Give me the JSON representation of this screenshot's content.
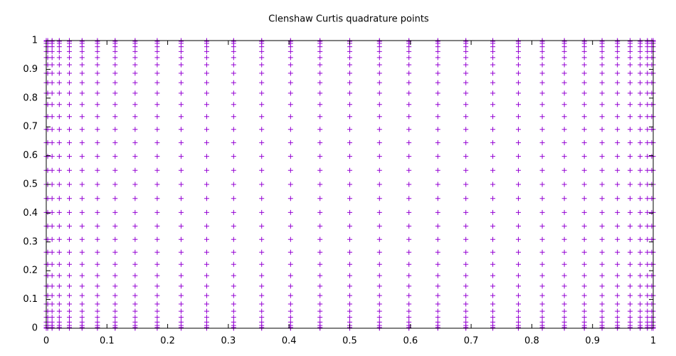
{
  "chart_data": {
    "type": "grid",
    "title": "Clenshaw Curtis quadrature points",
    "x": [
      0,
      0.0024,
      0.0096,
      0.0215,
      0.0381,
      0.059,
      0.0843,
      0.1135,
      0.1464,
      0.1828,
      0.2222,
      0.2643,
      0.3087,
      0.3549,
      0.4025,
      0.451,
      0.5,
      0.549,
      0.5975,
      0.6451,
      0.6913,
      0.7357,
      0.7778,
      0.8172,
      0.8536,
      0.8865,
      0.9157,
      0.941,
      0.9619,
      0.9785,
      0.9904,
      0.9976,
      1
    ],
    "y": [
      0,
      0.0024,
      0.0096,
      0.0215,
      0.0381,
      0.059,
      0.0843,
      0.1135,
      0.1464,
      0.1828,
      0.2222,
      0.2643,
      0.3087,
      0.3549,
      0.4025,
      0.451,
      0.5,
      0.549,
      0.5975,
      0.6451,
      0.6913,
      0.7357,
      0.7778,
      0.8172,
      0.8536,
      0.8865,
      0.9157,
      0.941,
      0.9619,
      0.9785,
      0.9904,
      0.9976,
      1
    ],
    "color": "#9400d3",
    "xlim": [
      0,
      1
    ],
    "ylim": [
      0,
      1
    ],
    "xticks": [
      0,
      0.1,
      0.2,
      0.3,
      0.4,
      0.5,
      0.6,
      0.7,
      0.8,
      0.9,
      1
    ],
    "yticks": [
      0,
      0.1,
      0.2,
      0.3,
      0.4,
      0.5,
      0.6,
      0.7,
      0.8,
      0.9,
      1
    ]
  }
}
